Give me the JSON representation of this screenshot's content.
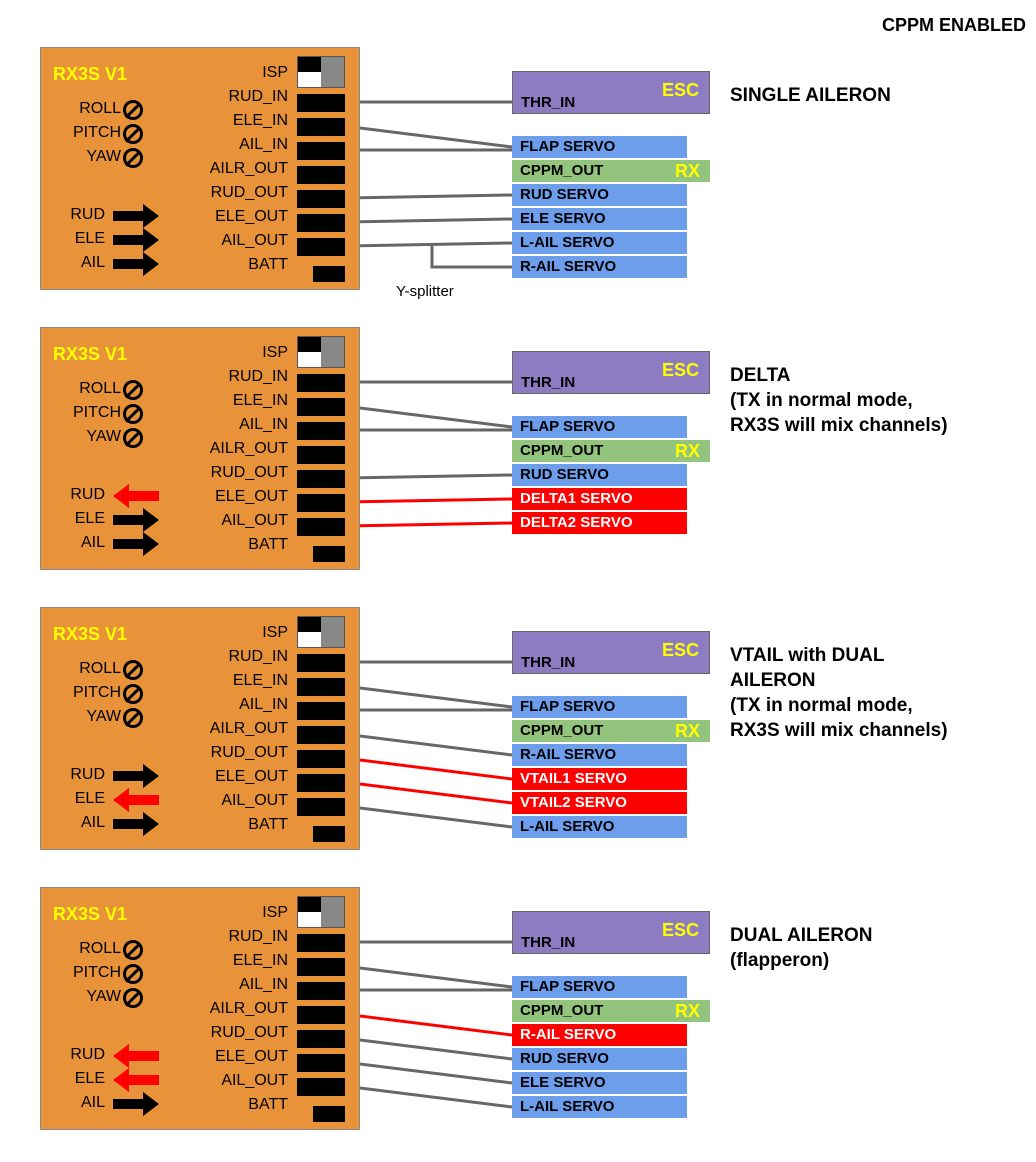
{
  "header": "CPPM ENABLED",
  "board_title": "RX3S V1",
  "isp_label": "ISP",
  "gyro_labels": [
    "ROLL",
    "PITCH",
    "YAW"
  ],
  "direction_labels": [
    "RUD",
    "ELE",
    "AIL"
  ],
  "port_labels": [
    "RUD_IN",
    "ELE_IN",
    "AIL_IN",
    "AILR_OUT",
    "RUD_OUT",
    "ELE_OUT",
    "AIL_OUT",
    "BATT"
  ],
  "y_splitter_label": "Y-splitter",
  "colors": {
    "board": "#e8923a",
    "title": "#ffff00",
    "servo": "#6d9eeb",
    "reversed_servo": "#ff0000",
    "esc": "#8e7cc3",
    "rx": "#93c47d",
    "wire": "#666666",
    "reversed_wire": "#ff0000"
  },
  "esc": {
    "input": "THR_IN",
    "tag": "ESC"
  },
  "rx": {
    "output": "CPPM_OUT",
    "tag": "RX"
  },
  "sections": [
    {
      "mode": "SINGLE AILERON",
      "arrows": [
        "normal",
        "normal",
        "normal"
      ],
      "boxes": [
        {
          "label": "FLAP SERVO",
          "type": "blue"
        },
        {
          "label": "RUD SERVO",
          "type": "blue"
        },
        {
          "label": "ELE SERVO",
          "type": "blue"
        },
        {
          "label": "L-AIL SERVO",
          "type": "blue"
        },
        {
          "label": "R-AIL SERVO",
          "type": "blue"
        }
      ]
    },
    {
      "mode": "DELTA\n(TX in normal mode,\nRX3S will mix channels)",
      "arrows": [
        "reversed",
        "normal",
        "normal"
      ],
      "boxes": [
        {
          "label": "FLAP SERVO",
          "type": "blue"
        },
        {
          "label": "RUD SERVO",
          "type": "blue"
        },
        {
          "label": "DELTA1 SERVO",
          "type": "red"
        },
        {
          "label": "DELTA2 SERVO",
          "type": "red"
        }
      ]
    },
    {
      "mode": "VTAIL with DUAL\nAILERON\n(TX in normal mode,\nRX3S will mix channels)",
      "arrows": [
        "normal",
        "reversed",
        "normal"
      ],
      "boxes": [
        {
          "label": "FLAP SERVO",
          "type": "blue"
        },
        {
          "label": "R-AIL SERVO",
          "type": "blue"
        },
        {
          "label": "VTAIL1 SERVO",
          "type": "red"
        },
        {
          "label": "VTAIL2 SERVO",
          "type": "red"
        },
        {
          "label": "L-AIL SERVO",
          "type": "blue"
        }
      ]
    },
    {
      "mode": "DUAL AILERON\n(flapperon)",
      "arrows": [
        "reversed",
        "reversed",
        "normal"
      ],
      "boxes": [
        {
          "label": "FLAP SERVO",
          "type": "blue"
        },
        {
          "label": "R-AIL SERVO",
          "type": "red"
        },
        {
          "label": "RUD SERVO",
          "type": "blue"
        },
        {
          "label": "ELE SERVO",
          "type": "blue"
        },
        {
          "label": "L-AIL SERVO",
          "type": "blue"
        }
      ]
    }
  ]
}
